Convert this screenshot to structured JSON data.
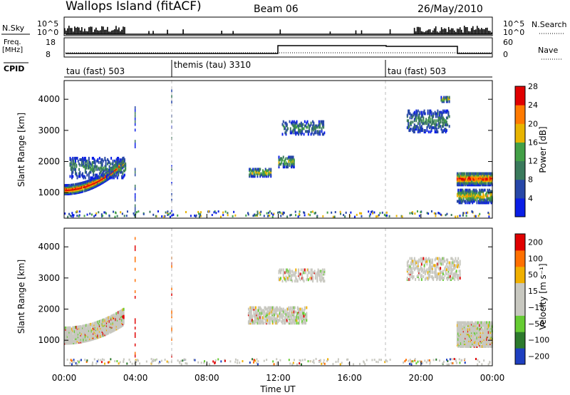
{
  "header": {
    "site": "Wallops Island (fitACF)",
    "beam": "Beam 06",
    "date": "26/May/2010"
  },
  "labels": {
    "nsky": "N.Sky",
    "nsearch": "N.Search",
    "freq_line1": "Freq.",
    "freq_line2": "[MHz]",
    "nave": "Nave",
    "cpid": "CPID",
    "ylabel_power": "Slant Range [km]",
    "ylabel_velocity": "Slant Range [km]",
    "cbar_power_label": "Power [dB]",
    "cbar_velocity_label": "Velocity [m s⁻¹]",
    "xlabel": "Time UT"
  },
  "noise_axis": {
    "left_ticks": [
      "10^5",
      "10^0"
    ],
    "right_ticks": [
      "10^5",
      "10^0"
    ]
  },
  "freq_axis": {
    "left_ticks": [
      "18",
      "8"
    ],
    "right_ticks": [
      "60",
      "0"
    ]
  },
  "cpid_segments": [
    {
      "label": "tau (fast) 503",
      "start_hour": 0
    },
    {
      "label": "themis (tau) 3310",
      "start_hour": 6
    },
    {
      "label": "tau (fast) 503",
      "start_hour": 18
    }
  ],
  "chart_data": [
    {
      "type": "heatmap",
      "panel": "power",
      "xlim_hours": [
        0,
        24
      ],
      "ylim_km": [
        180,
        4600
      ],
      "xticks": [
        "00:00",
        "04:00",
        "08:00",
        "12:00",
        "16:00",
        "20:00",
        "00:00"
      ],
      "yticks": [
        1000,
        2000,
        3000,
        4000
      ],
      "colorbar": {
        "ticks": [
          "4",
          "8",
          "12",
          "16",
          "20",
          "24",
          "28"
        ],
        "colors": [
          "#0a1ee6",
          "#2747a8",
          "#3a7a5c",
          "#43a047",
          "#e8b400",
          "#ff7a00",
          "#e00000"
        ]
      },
      "echo_regions": [
        {
          "t0": 0.0,
          "t1": 3.3,
          "range_center": 1100,
          "range_width": 280,
          "slope": 220,
          "intensity": 0.92
        },
        {
          "t0": 0.3,
          "t1": 3.4,
          "range_center": 1800,
          "range_width": 650,
          "slope": 0,
          "intensity": 0.3
        },
        {
          "t0": 10.3,
          "t1": 11.6,
          "range_center": 1650,
          "range_width": 250,
          "slope": 0,
          "intensity": 0.55
        },
        {
          "t0": 12.0,
          "t1": 12.9,
          "range_center": 2000,
          "range_width": 350,
          "slope": 0,
          "intensity": 0.5
        },
        {
          "t0": 12.2,
          "t1": 14.6,
          "range_center": 3100,
          "range_width": 450,
          "slope": 0,
          "intensity": 0.3
        },
        {
          "t0": 19.2,
          "t1": 21.6,
          "range_center": 3300,
          "range_width": 700,
          "slope": 0,
          "intensity": 0.3
        },
        {
          "t0": 21.1,
          "t1": 21.6,
          "range_center": 4000,
          "range_width": 150,
          "slope": 0,
          "intensity": 0.6
        },
        {
          "t0": 22.0,
          "t1": 24.0,
          "range_center": 1450,
          "range_width": 400,
          "slope": 0,
          "intensity": 0.85
        },
        {
          "t0": 22.0,
          "t1": 24.0,
          "range_center": 900,
          "range_width": 450,
          "slope": 0,
          "intensity": 0.55
        }
      ]
    },
    {
      "type": "heatmap",
      "panel": "velocity",
      "xlim_hours": [
        0,
        24
      ],
      "ylim_km": [
        180,
        4600
      ],
      "xticks": [
        "00:00",
        "04:00",
        "08:00",
        "12:00",
        "16:00",
        "20:00",
        "00:00"
      ],
      "yticks": [
        1000,
        2000,
        3000,
        4000
      ],
      "colorbar": {
        "ticks": [
          "200",
          "100",
          "50",
          "15",
          "−15",
          "−50",
          "−100",
          "−200"
        ],
        "colors": [
          "#1e3fc0",
          "#2d7a2d",
          "#66cc33",
          "#c8c8c0",
          "#c8c8c0",
          "#f0b000",
          "#ff7000",
          "#e00000"
        ]
      },
      "echo_regions": [
        {
          "t0": 0.0,
          "t1": 3.3,
          "range_center": 1150,
          "range_width": 500,
          "slope": 150,
          "intensity": 0.9
        },
        {
          "t0": 10.3,
          "t1": 13.6,
          "range_center": 1800,
          "range_width": 500,
          "slope": 0,
          "intensity": 0.5
        },
        {
          "t0": 12.0,
          "t1": 14.6,
          "range_center": 3100,
          "range_width": 400,
          "slope": 0,
          "intensity": 0.3
        },
        {
          "t0": 19.2,
          "t1": 22.2,
          "range_center": 3300,
          "range_width": 700,
          "slope": 0,
          "intensity": 0.3
        },
        {
          "t0": 22.0,
          "t1": 24.0,
          "range_center": 1200,
          "range_width": 800,
          "slope": 0,
          "intensity": 0.8
        }
      ]
    }
  ]
}
